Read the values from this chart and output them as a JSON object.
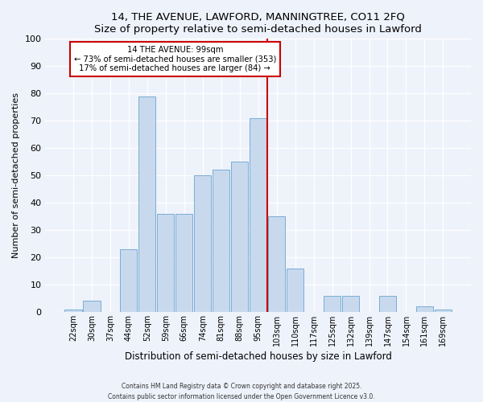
{
  "title": "14, THE AVENUE, LAWFORD, MANNINGTREE, CO11 2FQ",
  "subtitle": "Size of property relative to semi-detached houses in Lawford",
  "xlabel": "Distribution of semi-detached houses by size in Lawford",
  "ylabel": "Number of semi-detached properties",
  "bin_labels": [
    "22sqm",
    "30sqm",
    "37sqm",
    "44sqm",
    "52sqm",
    "59sqm",
    "66sqm",
    "74sqm",
    "81sqm",
    "88sqm",
    "95sqm",
    "103sqm",
    "110sqm",
    "117sqm",
    "125sqm",
    "132sqm",
    "139sqm",
    "147sqm",
    "154sqm",
    "161sqm",
    "169sqm"
  ],
  "bar_heights": [
    1,
    4,
    0,
    23,
    79,
    36,
    36,
    50,
    52,
    55,
    71,
    35,
    16,
    0,
    6,
    6,
    0,
    6,
    0,
    2,
    1
  ],
  "bar_color": "#c8d9ee",
  "bar_edge_color": "#7aadd4",
  "vline_bin_index": 10,
  "annotation_title": "14 THE AVENUE: 99sqm",
  "annotation_line1": "← 73% of semi-detached houses are smaller (353)",
  "annotation_line2": "17% of semi-detached houses are larger (84) →",
  "annotation_box_facecolor": "#ffffff",
  "annotation_border_color": "#cc0000",
  "vline_color": "#cc0000",
  "ylim": [
    0,
    100
  ],
  "background_color": "#eef2fb",
  "grid_color": "#ffffff",
  "footer1": "Contains HM Land Registry data © Crown copyright and database right 2025.",
  "footer2": "Contains public sector information licensed under the Open Government Licence v3.0."
}
